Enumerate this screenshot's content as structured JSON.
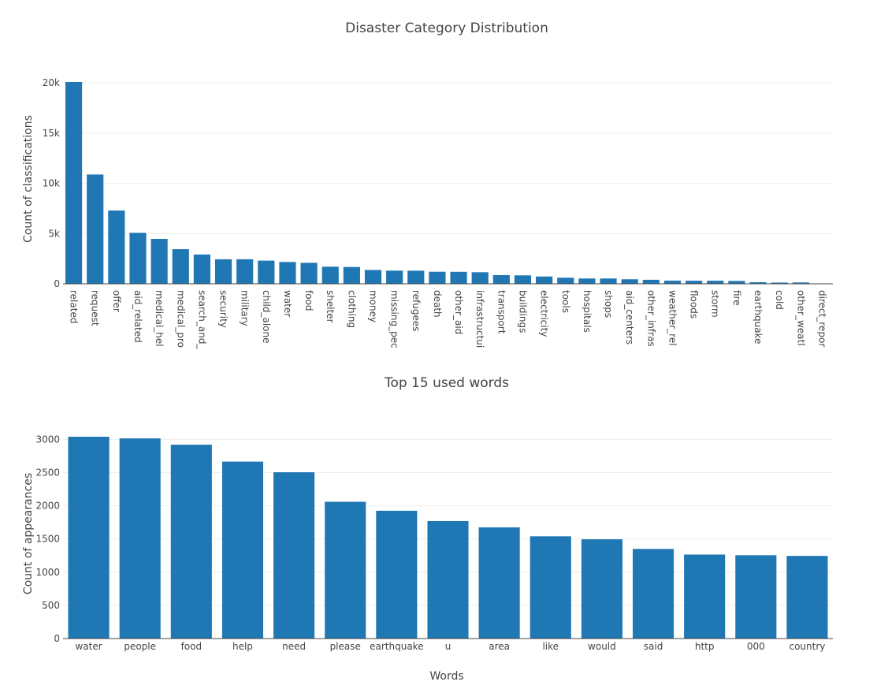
{
  "chart_data": [
    {
      "type": "bar",
      "title": "Disaster Category Distribution",
      "xlabel": "",
      "ylabel": "Count of classifications",
      "ylim": [
        0,
        20094
      ],
      "yticks": [
        0,
        5000,
        10000,
        15000,
        20000
      ],
      "ytick_labels": [
        "0",
        "5k",
        "10k",
        "15k",
        "20k"
      ],
      "grid": true,
      "color": "#1f77b4",
      "categories": [
        "related",
        "request",
        "offer",
        "aid_related",
        "medical_hel",
        "medical_pro",
        "search_and_",
        "security",
        "military",
        "child_alone",
        "water",
        "food",
        "shelter",
        "clothing",
        "money",
        "missing_pec",
        "refugees",
        "death",
        "other_aid",
        "infrastructui",
        "transport",
        "buildings",
        "electricity",
        "tools",
        "hospitals",
        "shops",
        "aid_centers",
        "other_infras",
        "weather_rel",
        "floods",
        "storm",
        "fire",
        "earthquake",
        "cold",
        "other_weatl",
        "direct_repor"
      ],
      "values": [
        20094,
        10880,
        7297,
        5075,
        4474,
        3446,
        2919,
        2440,
        2443,
        2308,
        2172,
        2090,
        1705,
        1674,
        1376,
        1313,
        1305,
        1201,
        1194,
        1151,
        866,
        842,
        724,
        605,
        529,
        531,
        452,
        400,
        317,
        304,
        305,
        285,
        155,
        122,
        134,
        30
      ]
    },
    {
      "type": "bar",
      "title": "Top 15 used words",
      "xlabel": "Words",
      "ylabel": "Count of appearances",
      "ylim": [
        0,
        3040
      ],
      "yticks": [
        0,
        500,
        1000,
        1500,
        2000,
        2500,
        3000
      ],
      "ytick_labels": [
        "0",
        "500",
        "1000",
        "1500",
        "2000",
        "2500",
        "3000"
      ],
      "grid": true,
      "color": "#1f77b4",
      "categories": [
        "water",
        "people",
        "food",
        "help",
        "need",
        "please",
        "earthquake",
        "u",
        "area",
        "like",
        "would",
        "said",
        "http",
        "000",
        "country"
      ],
      "values": [
        3040,
        3015,
        2920,
        2665,
        2505,
        2060,
        1925,
        1770,
        1675,
        1540,
        1495,
        1350,
        1265,
        1255,
        1245
      ]
    }
  ]
}
